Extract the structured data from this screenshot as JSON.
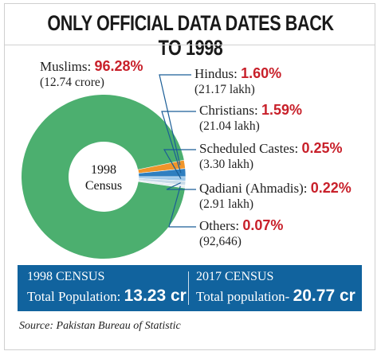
{
  "title": "ONLY OFFICIAL DATA DATES BACK TO 1998",
  "chart_data": {
    "type": "pie",
    "center_label": [
      "1998",
      "Census"
    ],
    "slices": [
      {
        "name": "Muslims",
        "percent": 96.28,
        "percent_label": "96.28%",
        "count": "(12.74 crore)",
        "color": "#4caf6f"
      },
      {
        "name": "Hindus",
        "percent": 1.6,
        "percent_label": "1.60%",
        "count": "(21.17 lakh)",
        "color": "#f0952a"
      },
      {
        "name": "Christians",
        "percent": 1.59,
        "percent_label": "1.59%",
        "count": "(21.04 lakh)",
        "color": "#2f7fc0"
      },
      {
        "name": "Scheduled Castes",
        "percent": 0.25,
        "percent_label": "0.25%",
        "count": "(3.30 lakh)",
        "color": "#9dc8ea"
      },
      {
        "name": "Qadiani (Ahmadis)",
        "percent": 0.22,
        "percent_label": "0.22%",
        "count": "(2.91 lakh)",
        "color": "#c9dbe9"
      },
      {
        "name": "Others",
        "percent": 0.07,
        "percent_label": "0.07%",
        "count": "(92,646)",
        "color": "#e6ecf1"
      }
    ]
  },
  "banner": {
    "left": {
      "heading": "1998 CENSUS",
      "label": "Total Population:",
      "value": "13.23 cr"
    },
    "right": {
      "heading": "2017 CENSUS",
      "label": "Total population-",
      "value": "20.77 cr"
    }
  },
  "source": "Source: Pakistan Bureau of Statistic",
  "colors": {
    "accent": "#c8202a",
    "banner": "#11639e",
    "leader_lines": "#1a5d96"
  }
}
